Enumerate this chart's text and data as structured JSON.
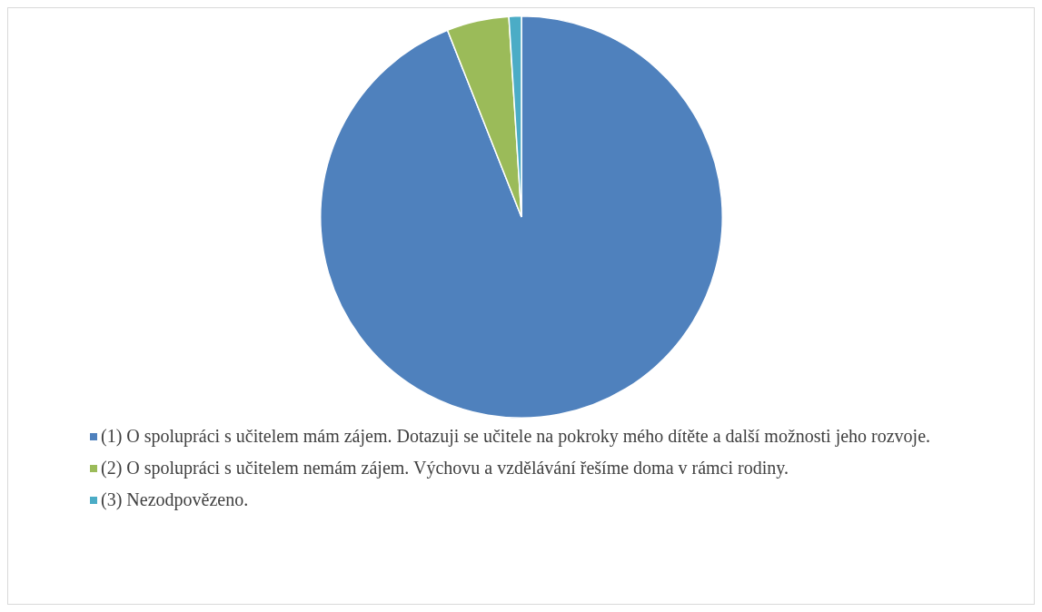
{
  "chart_data": {
    "type": "pie",
    "categories": [
      "(1) O spolupráci s učitelem mám zájem. Dotazuji se učitele na pokroky mého dítěte a další možnosti jeho rozvoje.",
      "(2) O spolupráci s učitelem nemám zájem. Výchovu a vzdělávání řešíme doma v rámci rodiny.",
      "(3) Nezodpovězeno."
    ],
    "values": [
      94,
      5,
      1
    ],
    "colors": [
      "#4f81bd",
      "#9bbb59",
      "#4bacc6"
    ],
    "legend": "bottom"
  }
}
